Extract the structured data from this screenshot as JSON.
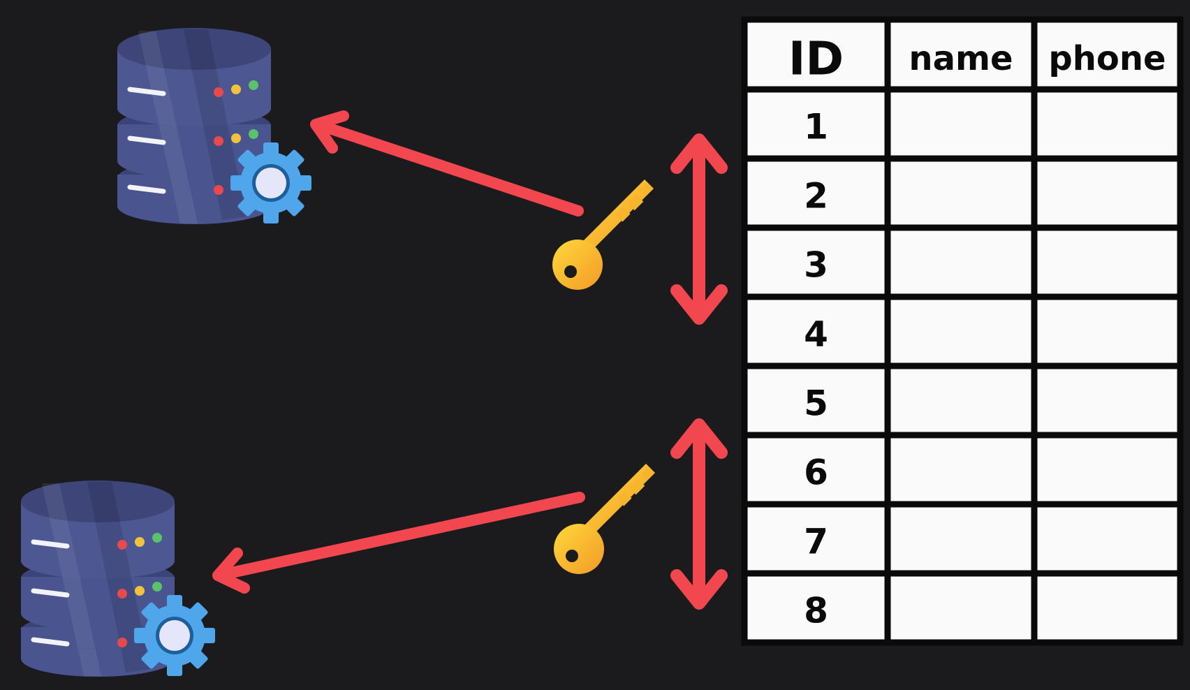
{
  "table": {
    "columns": [
      "ID",
      "name",
      "phone"
    ],
    "rows": [
      {
        "id": "1",
        "name": "",
        "phone": ""
      },
      {
        "id": "2",
        "name": "",
        "phone": ""
      },
      {
        "id": "3",
        "name": "",
        "phone": ""
      },
      {
        "id": "4",
        "name": "",
        "phone": ""
      },
      {
        "id": "5",
        "name": "",
        "phone": ""
      },
      {
        "id": "6",
        "name": "",
        "phone": ""
      },
      {
        "id": "7",
        "name": "",
        "phone": ""
      },
      {
        "id": "8",
        "name": "",
        "phone": ""
      }
    ]
  },
  "shards": [
    {
      "icon": "database-server-icon",
      "badge_icon": "gear-icon",
      "row_range": [
        "1",
        "4"
      ],
      "key_icon": "key-icon"
    },
    {
      "icon": "database-server-icon",
      "badge_icon": "gear-icon",
      "row_range": [
        "5",
        "8"
      ],
      "key_icon": "key-icon"
    }
  ],
  "colors": {
    "background": "#1b1b1d",
    "arrow": "#f2474f",
    "db_body": "#4a5590",
    "db_top": "#3e4679",
    "gear": "#4fa6ea",
    "key": "#f6c431",
    "table_fill": "#fafafa",
    "table_border": "#0a0a0a"
  }
}
